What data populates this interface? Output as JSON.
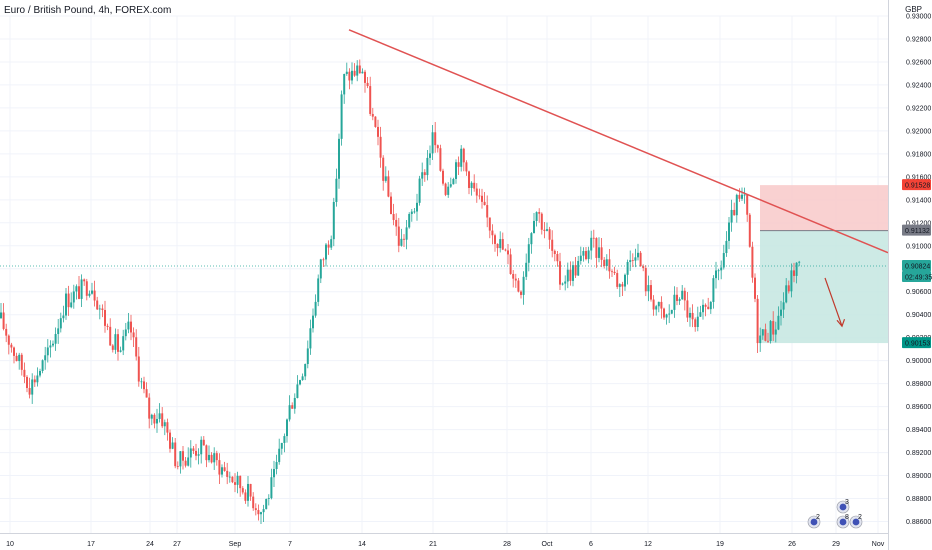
{
  "header": {
    "title": "Euro / British Pound, 4h, FOREX.com",
    "currency": "GBP"
  },
  "colors": {
    "up": "#26a69a",
    "down": "#ef5350",
    "trend": "#e05252",
    "stop_zone": "#f8c9c9",
    "target_zone": "#c4e6e1",
    "grid": "#f0f3fa"
  },
  "chart_data": {
    "type": "candlestick",
    "title": "Euro / British Pound, 4h, FOREX.com",
    "ylabel": "GBP",
    "ylim": [
      0.885,
      0.93
    ],
    "grid": true,
    "y_ticks": [
      "0.93000",
      "0.92800",
      "0.92600",
      "0.92400",
      "0.92200",
      "0.92000",
      "0.91800",
      "0.91600",
      "0.91400",
      "0.91200",
      "0.91000",
      "0.90800",
      "0.90600",
      "0.90400",
      "0.90200",
      "0.90000",
      "0.89800",
      "0.89600",
      "0.89400",
      "0.89200",
      "0.89000",
      "0.88800",
      "0.88600"
    ],
    "x_ticks": [
      "10",
      "17",
      "24",
      "27",
      "Sep",
      "7",
      "14",
      "21",
      "28",
      "Oct",
      "6",
      "12",
      "19",
      "26",
      "29",
      "Nov"
    ],
    "price_path": [
      {
        "x": "10",
        "y": 0.9037
      },
      {
        "x": "11",
        "y": 0.901
      },
      {
        "x": "12",
        "y": 0.8978
      },
      {
        "x": "13",
        "y": 0.9005
      },
      {
        "x": "14",
        "y": 0.9052
      },
      {
        "x": "17",
        "y": 0.9068
      },
      {
        "x": "18",
        "y": 0.9022
      },
      {
        "x": "19",
        "y": 0.9008
      },
      {
        "x": "20",
        "y": 0.903
      },
      {
        "x": "21",
        "y": 0.8985
      },
      {
        "x": "24",
        "y": 0.895
      },
      {
        "x": "25",
        "y": 0.8955
      },
      {
        "x": "26",
        "y": 0.893
      },
      {
        "x": "27",
        "y": 0.891
      },
      {
        "x": "28",
        "y": 0.892
      },
      {
        "x": "31",
        "y": 0.8925
      },
      {
        "x": "Sep",
        "y": 0.8895
      },
      {
        "x": "2",
        "y": 0.8885
      },
      {
        "x": "3",
        "y": 0.8868
      },
      {
        "x": "4",
        "y": 0.89
      },
      {
        "x": "Sep 7",
        "y": 0.896
      },
      {
        "x": "8",
        "y": 0.9
      },
      {
        "x": "9",
        "y": 0.908
      },
      {
        "x": "10",
        "y": 0.912
      },
      {
        "x": "11",
        "y": 0.9245
      },
      {
        "x": "Sep 14",
        "y": 0.9255
      },
      {
        "x": "15",
        "y": 0.92
      },
      {
        "x": "16",
        "y": 0.9155
      },
      {
        "x": "17",
        "y": 0.91
      },
      {
        "x": "18",
        "y": 0.9135
      },
      {
        "x": "Sep 21",
        "y": 0.9195
      },
      {
        "x": "22",
        "y": 0.915
      },
      {
        "x": "23",
        "y": 0.918
      },
      {
        "x": "24",
        "y": 0.9145
      },
      {
        "x": "25",
        "y": 0.9118
      },
      {
        "x": "Sep 28",
        "y": 0.909
      },
      {
        "x": "29",
        "y": 0.906
      },
      {
        "x": "30",
        "y": 0.9135
      },
      {
        "x": "Oct",
        "y": 0.911
      },
      {
        "x": "2",
        "y": 0.907
      },
      {
        "x": "5",
        "y": 0.908
      },
      {
        "x": "Oct 6",
        "y": 0.91
      },
      {
        "x": "7",
        "y": 0.909
      },
      {
        "x": "8",
        "y": 0.9065
      },
      {
        "x": "9",
        "y": 0.91
      },
      {
        "x": "Oct 12",
        "y": 0.906
      },
      {
        "x": "13",
        "y": 0.9035
      },
      {
        "x": "14",
        "y": 0.906
      },
      {
        "x": "15",
        "y": 0.9025
      },
      {
        "x": "16",
        "y": 0.905
      },
      {
        "x": "Oct 19",
        "y": 0.908
      },
      {
        "x": "20",
        "y": 0.9135
      },
      {
        "x": "21",
        "y": 0.914
      },
      {
        "x": "22",
        "y": 0.902
      },
      {
        "x": "23",
        "y": 0.903
      },
      {
        "x": "Oct 26",
        "y": 0.9082
      }
    ],
    "trendline": {
      "from": {
        "x": "Sep 14",
        "y": 0.9288
      },
      "to": {
        "x": "Nov",
        "y": 0.9094
      }
    },
    "position": {
      "direction": "short",
      "entry": "0.91132",
      "stop": "0.91528",
      "target": "0.90153",
      "current_price": "0.90824",
      "countdown": "02:49:35"
    },
    "projection_arrow": {
      "from": {
        "x": "Oct 27",
        "y": 0.9072
      },
      "to": {
        "x": "Oct 28",
        "y": 0.903
      }
    }
  },
  "event_badges": [
    {
      "icon": "flag-icon",
      "count": "2"
    },
    {
      "icon": "flag-icon",
      "count": "3"
    },
    {
      "icon": "flag-icon",
      "count": "8"
    },
    {
      "icon": "flag-icon",
      "count": "2"
    }
  ]
}
